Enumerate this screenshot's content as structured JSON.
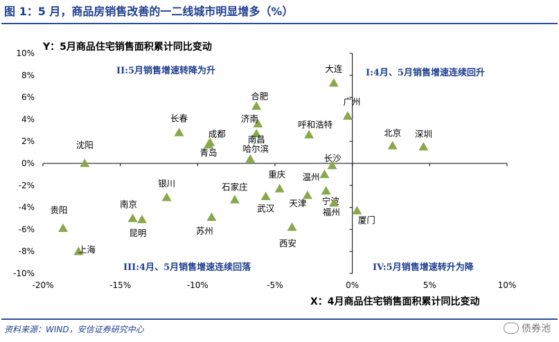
{
  "header": {
    "title": "图 1：5 月，商品房销售改善的一二线城市明显增多（%）"
  },
  "footer": {
    "source": "资料来源：WIND，安信证券研究中心",
    "watermark": "债券池",
    "watermark_icon": "wechat-icon"
  },
  "colors": {
    "marker": "#8aa84b",
    "quadrant_text": "#1f3f8f",
    "axis": "#000000"
  },
  "chart_data": {
    "type": "scatter",
    "xlabel": "X：4月商品住宅销售面积累计同比变动",
    "ylabel": "Y：5月商品住宅销售面积累计同比变动",
    "xlim": [
      -20,
      10
    ],
    "ylim": [
      -10,
      10
    ],
    "x_ticks": [
      -20,
      -15,
      -10,
      -5,
      0,
      5,
      10
    ],
    "y_ticks": [
      -10,
      -8,
      -6,
      -4,
      -2,
      0,
      2,
      4,
      6,
      8,
      10
    ],
    "x_tick_labels": [
      "-20%",
      "-15%",
      "-10%",
      "-5%",
      "0%",
      "5%",
      "10%"
    ],
    "y_tick_labels": [
      "-10%",
      "-8%",
      "-6%",
      "-4%",
      "-2%",
      "0%",
      "2%",
      "4%",
      "6%",
      "8%",
      "10%"
    ],
    "quadrant_labels": {
      "I": "I:4月、5月销售增速连续回升",
      "II": "II:5月销售增速转降为升",
      "III": "III:4月、5月销售增速连续回落",
      "IV": "IV:5月销售增速转升为降"
    },
    "points": [
      {
        "label": "大连",
        "x": -1.2,
        "y": 7.3
      },
      {
        "label": "广州",
        "x": -0.3,
        "y": 4.3
      },
      {
        "label": "北京",
        "x": 2.6,
        "y": 1.6
      },
      {
        "label": "深圳",
        "x": 4.6,
        "y": 1.5
      },
      {
        "label": "合肥",
        "x": -6.2,
        "y": 5.2
      },
      {
        "label": "长春",
        "x": -11.2,
        "y": 2.8
      },
      {
        "label": "济南",
        "x": -6.1,
        "y": 3.6
      },
      {
        "label": "成都",
        "x": -9.2,
        "y": 1.9
      },
      {
        "label": "青岛",
        "x": -9.3,
        "y": 1.7
      },
      {
        "label": "南昌",
        "x": -6.2,
        "y": 2.7
      },
      {
        "label": "呼和浩特",
        "x": -2.8,
        "y": 2.6
      },
      {
        "label": "哈尔滨",
        "x": -6.6,
        "y": 0.4
      },
      {
        "label": "沈阳",
        "x": -17.3,
        "y": 0.0
      },
      {
        "label": "长沙",
        "x": -1.3,
        "y": -0.2
      },
      {
        "label": "温州",
        "x": -1.8,
        "y": -1.0
      },
      {
        "label": "宁波",
        "x": -1.7,
        "y": -2.5
      },
      {
        "label": "重庆",
        "x": -4.7,
        "y": -2.3
      },
      {
        "label": "天津",
        "x": -2.9,
        "y": -2.9
      },
      {
        "label": "福州",
        "x": -1.2,
        "y": -3.6
      },
      {
        "label": "石家庄",
        "x": -7.6,
        "y": -3.3
      },
      {
        "label": "武汉",
        "x": -5.6,
        "y": -3.0
      },
      {
        "label": "银川",
        "x": -12.0,
        "y": -3.1
      },
      {
        "label": "南京",
        "x": -14.2,
        "y": -5.0
      },
      {
        "label": "昆明",
        "x": -13.6,
        "y": -5.1
      },
      {
        "label": "苏州",
        "x": -9.1,
        "y": -4.9
      },
      {
        "label": "西安",
        "x": -3.9,
        "y": -5.8
      },
      {
        "label": "贵阳",
        "x": -18.7,
        "y": -5.9
      },
      {
        "label": "上海",
        "x": -17.7,
        "y": -8.0
      },
      {
        "label": "厦门",
        "x": 0.3,
        "y": -4.3
      }
    ]
  }
}
